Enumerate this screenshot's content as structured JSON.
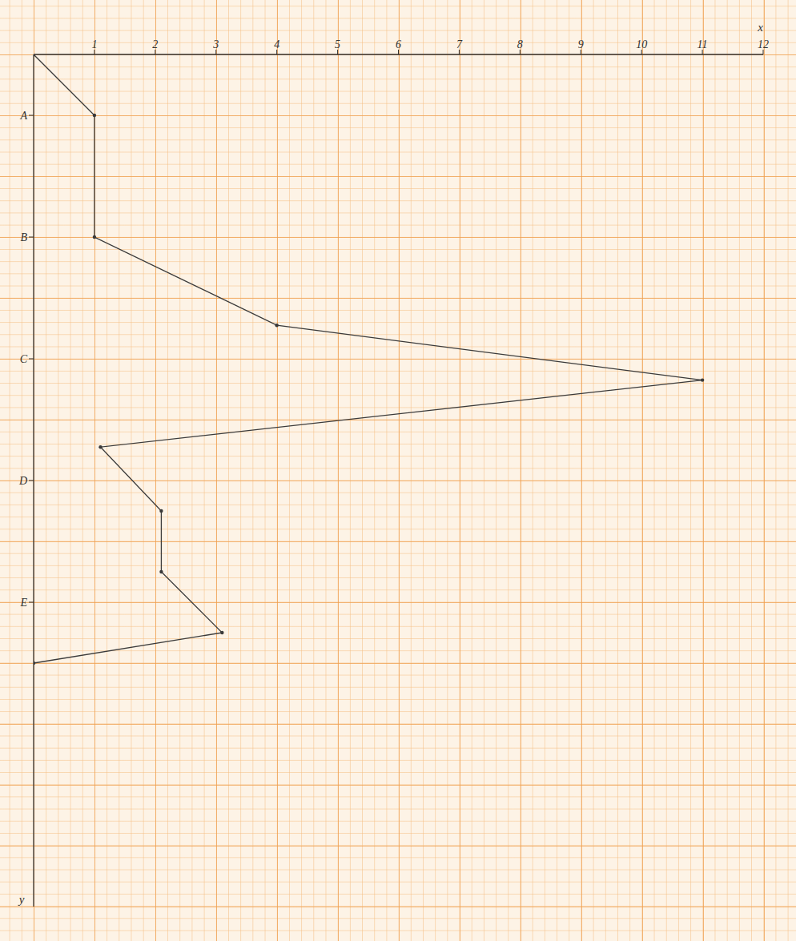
{
  "chart_data": {
    "type": "line",
    "x_label": "x",
    "y_label": "y",
    "x": [
      0,
      1,
      1,
      4,
      11,
      1.1,
      2.1,
      2.1,
      3.1,
      0
    ],
    "y": [
      0,
      1,
      3,
      4.45,
      5.35,
      6.45,
      7.5,
      8.5,
      9.5,
      10
    ],
    "xlim": [
      0,
      12
    ],
    "xticks": [
      1,
      2,
      3,
      4,
      5,
      6,
      7,
      8,
      9,
      10,
      11,
      12
    ],
    "ylim": [
      0,
      14
    ],
    "yticks": [
      {
        "value": 1,
        "label": "A"
      },
      {
        "value": 3,
        "label": "B"
      },
      {
        "value": 5,
        "label": "C"
      },
      {
        "value": 7,
        "label": "D"
      },
      {
        "value": 9,
        "label": "E"
      }
    ],
    "color": "#3a3a3a",
    "marker": "dot",
    "grid": true
  }
}
